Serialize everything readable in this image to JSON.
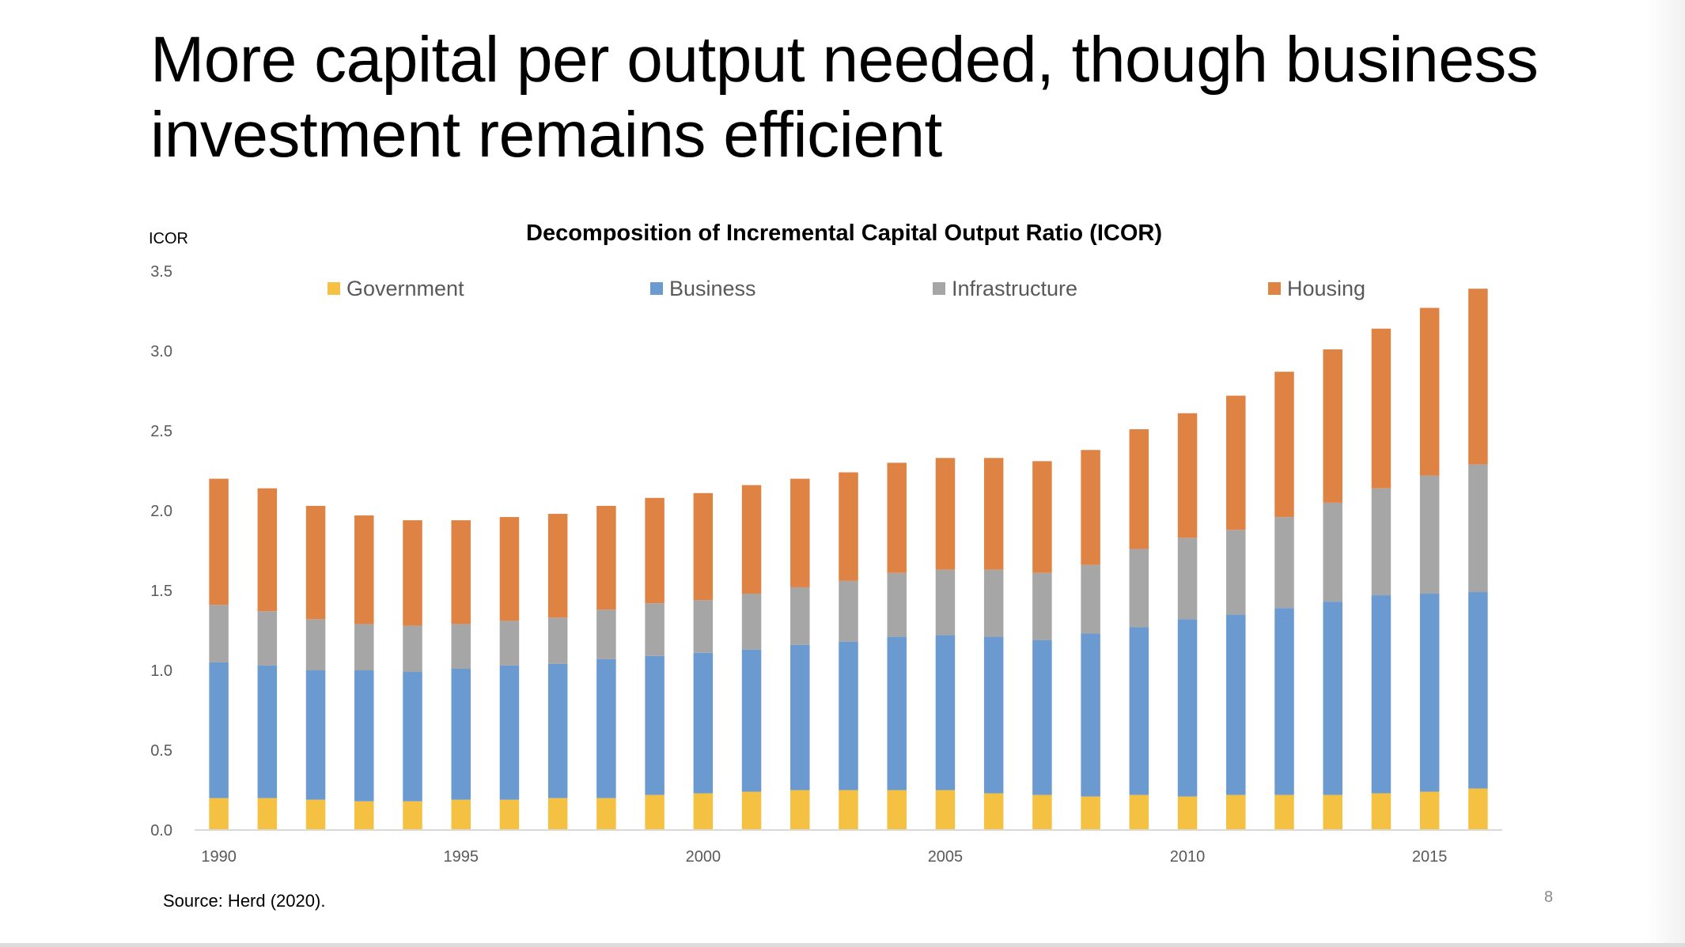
{
  "slide": {
    "title": "More capital per output needed, though business investment remains efficient",
    "source": "Source: Herd (2020).",
    "page_number": "8"
  },
  "chart_data": {
    "type": "bar",
    "stacked": true,
    "title": "Decomposition of Incremental Capital Output Ratio (ICOR)",
    "xlabel": "",
    "ylabel": "ICOR",
    "ylim": [
      0,
      3.5
    ],
    "yticks": [
      "0.0",
      "0.5",
      "1.0",
      "1.5",
      "2.0",
      "2.5",
      "3.0",
      "3.5"
    ],
    "ytick_values": [
      0,
      0.5,
      1.0,
      1.5,
      2.0,
      2.5,
      3.0,
      3.5
    ],
    "grid": false,
    "legend_position": "top",
    "categories": [
      1990,
      1991,
      1992,
      1993,
      1994,
      1995,
      1996,
      1997,
      1998,
      1999,
      2000,
      2001,
      2002,
      2003,
      2004,
      2005,
      2006,
      2007,
      2008,
      2009,
      2010,
      2011,
      2012,
      2013,
      2014,
      2015,
      2016
    ],
    "xtick_labels": [
      "1990",
      "1995",
      "2000",
      "2005",
      "2010",
      "2015"
    ],
    "series": [
      {
        "name": "Government",
        "color": "#F4C142",
        "values": [
          0.2,
          0.2,
          0.19,
          0.18,
          0.18,
          0.19,
          0.19,
          0.2,
          0.2,
          0.22,
          0.23,
          0.24,
          0.25,
          0.25,
          0.25,
          0.25,
          0.23,
          0.22,
          0.21,
          0.22,
          0.21,
          0.22,
          0.22,
          0.22,
          0.23,
          0.24,
          0.26
        ]
      },
      {
        "name": "Business",
        "color": "#6A9AD0",
        "values": [
          0.85,
          0.83,
          0.81,
          0.82,
          0.81,
          0.82,
          0.84,
          0.84,
          0.87,
          0.87,
          0.88,
          0.89,
          0.91,
          0.93,
          0.96,
          0.97,
          0.98,
          0.97,
          1.02,
          1.05,
          1.11,
          1.13,
          1.17,
          1.21,
          1.24,
          1.24,
          1.23
        ]
      },
      {
        "name": "Infrastructure",
        "color": "#A6A6A6",
        "values": [
          0.36,
          0.34,
          0.32,
          0.29,
          0.29,
          0.28,
          0.28,
          0.29,
          0.31,
          0.33,
          0.33,
          0.35,
          0.36,
          0.38,
          0.4,
          0.41,
          0.42,
          0.42,
          0.43,
          0.49,
          0.51,
          0.53,
          0.57,
          0.62,
          0.67,
          0.74,
          0.8
        ]
      },
      {
        "name": "Housing",
        "color": "#DF8345",
        "values": [
          0.79,
          0.77,
          0.71,
          0.68,
          0.66,
          0.65,
          0.65,
          0.65,
          0.65,
          0.66,
          0.67,
          0.68,
          0.68,
          0.68,
          0.69,
          0.7,
          0.7,
          0.7,
          0.72,
          0.75,
          0.78,
          0.84,
          0.91,
          0.96,
          1.0,
          1.05,
          1.1
        ]
      }
    ]
  }
}
